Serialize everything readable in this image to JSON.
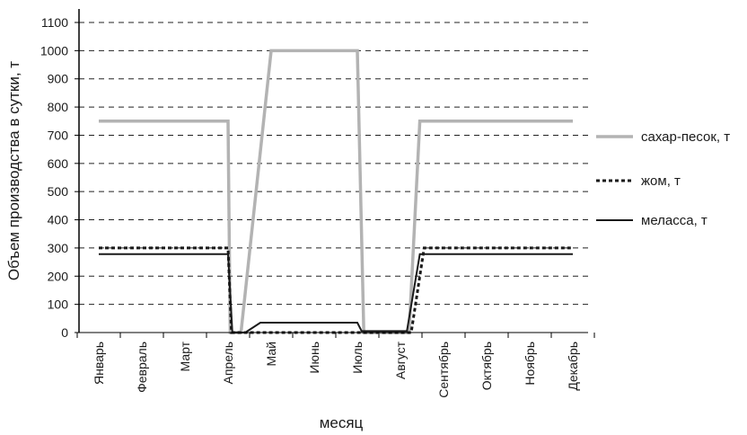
{
  "chart_data": {
    "type": "line",
    "title": "",
    "xlabel": "месяц",
    "ylabel": "Объем производства в сутки, т",
    "ylim": [
      0,
      1100
    ],
    "yticks": [
      0,
      100,
      200,
      300,
      400,
      500,
      600,
      700,
      800,
      900,
      1000,
      1100
    ],
    "grid": "horizontal dashed",
    "legend_position": "right",
    "categories": [
      "Январь",
      "Февраль",
      "Март",
      "Апрель",
      "Май",
      "Июнь",
      "Июль",
      "Август",
      "Сентябрь",
      "Октябрь",
      "Ноябрь",
      "Декабрь"
    ],
    "series": [
      {
        "name": "сахар-песок, т",
        "style": "solid",
        "color": "#b3b3b3",
        "points": [
          [
            0,
            750
          ],
          [
            3,
            750
          ],
          [
            3.05,
            0
          ],
          [
            3.3,
            0
          ],
          [
            4,
            1000
          ],
          [
            6,
            1000
          ],
          [
            6.15,
            0
          ],
          [
            7.2,
            0
          ],
          [
            7.45,
            750
          ],
          [
            11,
            750
          ]
        ]
      },
      {
        "name": "жом, т",
        "style": "dotted",
        "color": "#1a1a1a",
        "points": [
          [
            0,
            300
          ],
          [
            3,
            300
          ],
          [
            3.08,
            0
          ],
          [
            7.25,
            0
          ],
          [
            7.55,
            300
          ],
          [
            11,
            300
          ]
        ]
      },
      {
        "name": "меласса, т",
        "style": "solid",
        "color": "#1a1a1a",
        "points": [
          [
            0,
            278
          ],
          [
            3,
            278
          ],
          [
            3.1,
            0
          ],
          [
            3.4,
            0
          ],
          [
            3.75,
            35
          ],
          [
            6,
            35
          ],
          [
            6.1,
            5
          ],
          [
            7.15,
            5
          ],
          [
            7.45,
            278
          ],
          [
            11,
            278
          ]
        ]
      }
    ]
  }
}
